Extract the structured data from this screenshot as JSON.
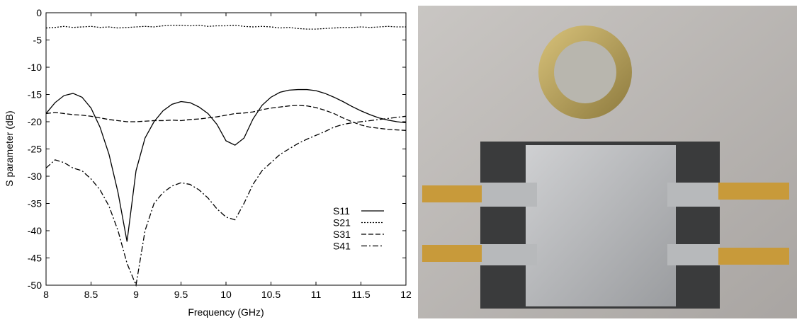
{
  "chart_data": {
    "type": "line",
    "x_label": "Frequency (GHz)",
    "y_label": "S parameter (dB)",
    "x": [
      8.0,
      8.1,
      8.2,
      8.3,
      8.4,
      8.5,
      8.6,
      8.7,
      8.8,
      8.9,
      9.0,
      9.1,
      9.2,
      9.3,
      9.4,
      9.5,
      9.6,
      9.7,
      9.8,
      9.9,
      10.0,
      10.1,
      10.2,
      10.3,
      10.4,
      10.5,
      10.6,
      10.7,
      10.8,
      10.9,
      11.0,
      11.1,
      11.2,
      11.3,
      11.4,
      11.5,
      11.6,
      11.7,
      11.8,
      11.9,
      12.0
    ],
    "series": [
      {
        "name": "S11",
        "color": "#000000",
        "dash": "solid",
        "values": [
          -18.5,
          -16.5,
          -15.2,
          -14.8,
          -15.5,
          -17.5,
          -21,
          -26,
          -33,
          -42,
          -29,
          -23,
          -20,
          -18,
          -16.8,
          -16.3,
          -16.5,
          -17.3,
          -18.5,
          -20.5,
          -23.5,
          -24.3,
          -23,
          -19.5,
          -17,
          -15.5,
          -14.6,
          -14.2,
          -14.1,
          -14.1,
          -14.3,
          -14.8,
          -15.5,
          -16.3,
          -17.2,
          -18,
          -18.7,
          -19.3,
          -19.7,
          -20,
          -20.2
        ]
      },
      {
        "name": "S21",
        "color": "#000000",
        "dash": "dotted",
        "values": [
          -2.8,
          -2.7,
          -2.5,
          -2.7,
          -2.6,
          -2.5,
          -2.7,
          -2.6,
          -2.8,
          -2.7,
          -2.6,
          -2.5,
          -2.6,
          -2.4,
          -2.3,
          -2.3,
          -2.4,
          -2.3,
          -2.5,
          -2.4,
          -2.4,
          -2.3,
          -2.5,
          -2.6,
          -2.5,
          -2.6,
          -2.8,
          -2.7,
          -2.9,
          -3,
          -3,
          -2.9,
          -2.8,
          -2.7,
          -2.7,
          -2.6,
          -2.7,
          -2.6,
          -2.5,
          -2.6,
          -2.6
        ]
      },
      {
        "name": "S31",
        "color": "#000000",
        "dash": "dashed",
        "values": [
          -18.5,
          -18.3,
          -18.5,
          -18.7,
          -18.8,
          -19,
          -19.3,
          -19.6,
          -19.8,
          -20,
          -20,
          -19.9,
          -19.8,
          -19.8,
          -19.7,
          -19.8,
          -19.6,
          -19.5,
          -19.3,
          -19.1,
          -18.8,
          -18.5,
          -18.4,
          -18.2,
          -17.8,
          -17.5,
          -17.3,
          -17.1,
          -17,
          -17.1,
          -17.4,
          -17.9,
          -18.5,
          -19.3,
          -20,
          -20.6,
          -21,
          -21.2,
          -21.4,
          -21.5,
          -21.6
        ]
      },
      {
        "name": "S41",
        "color": "#000000",
        "dash": "dashdot",
        "values": [
          -28.5,
          -27,
          -27.5,
          -28.5,
          -29,
          -30.5,
          -32.5,
          -35.5,
          -40,
          -46,
          -50,
          -40,
          -35,
          -33,
          -31.8,
          -31.2,
          -31.5,
          -32.5,
          -34,
          -36,
          -37.5,
          -38,
          -35,
          -31.5,
          -29,
          -27.5,
          -26,
          -25,
          -24,
          -23.2,
          -22.5,
          -21.8,
          -21,
          -20.5,
          -20.2,
          -20,
          -19.8,
          -19.6,
          -19.4,
          -19.2,
          -19
        ]
      }
    ],
    "xlim": [
      8,
      12
    ],
    "xticks": [
      8,
      8.5,
      9,
      9.5,
      10,
      10.5,
      11,
      11.5,
      12
    ],
    "ylim": [
      -50,
      0
    ],
    "yticks": [
      0,
      -5,
      -10,
      -15,
      -20,
      -25,
      -30,
      -35,
      -40,
      -45,
      -50
    ],
    "legend": "lower right",
    "grid": false
  }
}
